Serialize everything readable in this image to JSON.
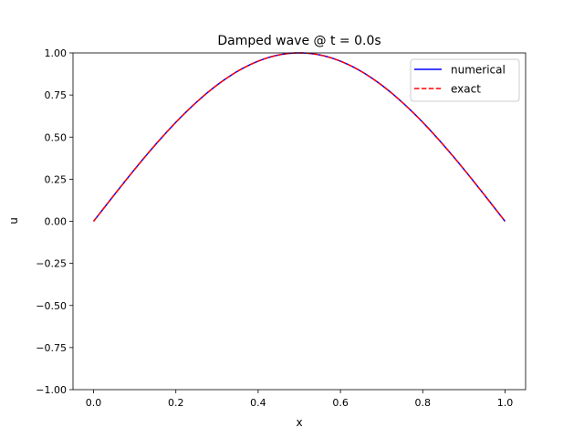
{
  "chart_data": {
    "type": "line",
    "title": "Damped wave @ t = 0.0s",
    "xlabel": "x",
    "ylabel": "u",
    "xlim": [
      -0.05,
      1.05
    ],
    "ylim": [
      -1.0,
      1.0
    ],
    "xticks": [
      0.0,
      0.2,
      0.4,
      0.6,
      0.8,
      1.0
    ],
    "xtick_labels": [
      "0.0",
      "0.2",
      "0.4",
      "0.6",
      "0.8",
      "1.0"
    ],
    "yticks": [
      -1.0,
      -0.75,
      -0.5,
      -0.25,
      0.0,
      0.25,
      0.5,
      0.75,
      1.0
    ],
    "ytick_labels": [
      "−1.00",
      "−0.75",
      "−0.50",
      "−0.25",
      "0.00",
      "0.25",
      "0.50",
      "0.75",
      "1.00"
    ],
    "grid": false,
    "legend_position": "top-right",
    "x": [
      0.0,
      0.05,
      0.1,
      0.15,
      0.2,
      0.25,
      0.3,
      0.35,
      0.4,
      0.45,
      0.5,
      0.55,
      0.6,
      0.65,
      0.7,
      0.75,
      0.8,
      0.85,
      0.9,
      0.95,
      1.0
    ],
    "series": [
      {
        "name": "numerical",
        "color": "#0000ff",
        "linestyle": "solid",
        "values": [
          0.0,
          0.156,
          0.309,
          0.454,
          0.588,
          0.707,
          0.809,
          0.891,
          0.951,
          0.988,
          1.0,
          0.988,
          0.951,
          0.891,
          0.809,
          0.707,
          0.588,
          0.454,
          0.309,
          0.156,
          0.0
        ]
      },
      {
        "name": "exact",
        "color": "#ff0000",
        "linestyle": "dashed",
        "values": [
          0.0,
          0.156,
          0.309,
          0.454,
          0.588,
          0.707,
          0.809,
          0.891,
          0.951,
          0.988,
          1.0,
          0.988,
          0.951,
          0.891,
          0.809,
          0.707,
          0.588,
          0.454,
          0.309,
          0.156,
          0.0
        ]
      }
    ]
  }
}
